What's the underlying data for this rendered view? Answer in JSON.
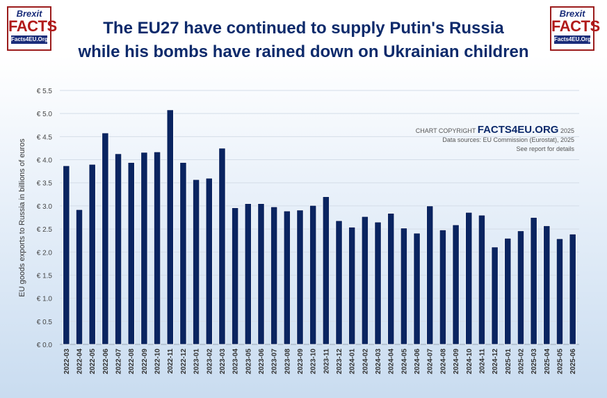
{
  "logo": {
    "brand_top": "Brexit",
    "brand_main": "FACTS",
    "brand_url": "Facts4EU.Org"
  },
  "credit": {
    "prefix": "CHART COPYRIGHT",
    "brand": "FACTS4EU.ORG",
    "year": "2025",
    "sources": "Data sources: EU Commission (Eurostat), 2025",
    "note": "See report for details"
  },
  "colors": {
    "bar": "#0a2460",
    "title": "#0d2a6b",
    "logo_red": "#b11a1a"
  },
  "chart_data": {
    "type": "bar",
    "title_line1": "The EU27 have continued to supply Putin's Russia",
    "title_line2": "while his bombs have rained down on Ukrainian children",
    "ylabel": "EU goods exports to Russia in billions of euros",
    "xlabel": "",
    "ylim": [
      0,
      5.5
    ],
    "yticks": [
      "€ 0.0",
      "€ 0.5",
      "€ 1.0",
      "€ 1.5",
      "€ 2.0",
      "€ 2.5",
      "€ 3.0",
      "€ 3.5",
      "€ 4.0",
      "€ 4.5",
      "€ 5.0",
      "€ 5.5"
    ],
    "grid": true,
    "categories": [
      "2022-03",
      "2022-04",
      "2022-05",
      "2022-06",
      "2022-07",
      "2022-08",
      "2022-09",
      "2022-10",
      "2022-11",
      "2022-12",
      "2023-01",
      "2023-02",
      "2023-03",
      "2023-04",
      "2023-05",
      "2023-06",
      "2023-07",
      "2023-08",
      "2023-09",
      "2023-10",
      "2023-11",
      "2023-12",
      "2024-01",
      "2024-02",
      "2024-03",
      "2024-04",
      "2024-05",
      "2024-06",
      "2024-07",
      "2024-08",
      "2024-09",
      "2024-10",
      "2024-11",
      "2024-12",
      "2025-01",
      "2025-02",
      "2025-03",
      "2025-04",
      "2025-05",
      "2025-06"
    ],
    "values": [
      3.87,
      2.92,
      3.9,
      4.58,
      4.13,
      3.94,
      4.16,
      4.17,
      5.08,
      3.94,
      3.57,
      3.6,
      4.25,
      2.96,
      3.05,
      3.05,
      2.98,
      2.89,
      2.91,
      3.01,
      3.2,
      2.68,
      2.54,
      2.77,
      2.65,
      2.84,
      2.52,
      2.41,
      3.0,
      2.48,
      2.59,
      2.86,
      2.8,
      2.11,
      2.3,
      2.46,
      2.75,
      2.57,
      2.29,
      2.39
    ]
  }
}
